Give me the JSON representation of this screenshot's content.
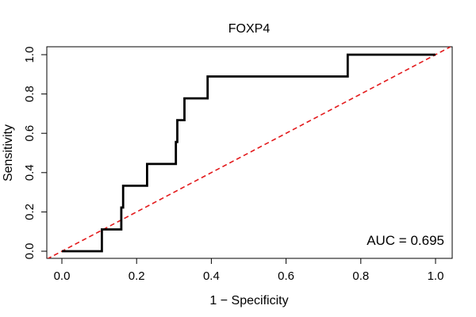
{
  "chart_data": {
    "type": "line",
    "title": "FOXP4",
    "xlabel": "1 − Specificity",
    "ylabel": "Sensitivity",
    "xlim": [
      0,
      1
    ],
    "ylim": [
      0,
      1
    ],
    "xticks": [
      0.0,
      0.2,
      0.4,
      0.6,
      0.8,
      1.0
    ],
    "xtick_labels": [
      "0.0",
      "0.2",
      "0.4",
      "0.6",
      "0.8",
      "1.0"
    ],
    "yticks": [
      0.0,
      0.2,
      0.4,
      0.6,
      0.8,
      1.0
    ],
    "ytick_labels": [
      "0.0",
      "0.2",
      "0.4",
      "0.6",
      "0.8",
      "1.0"
    ],
    "grid": false,
    "annotation": "AUC = 0.695",
    "series": [
      {
        "name": "ROC",
        "color": "#000000",
        "style": "solid",
        "x": [
          0.0,
          0.107,
          0.107,
          0.159,
          0.159,
          0.164,
          0.164,
          0.228,
          0.228,
          0.305,
          0.305,
          0.309,
          0.309,
          0.328,
          0.328,
          0.39,
          0.39,
          0.765,
          0.765,
          1.0
        ],
        "y": [
          0.0,
          0.0,
          0.111,
          0.111,
          0.222,
          0.222,
          0.333,
          0.333,
          0.444,
          0.444,
          0.556,
          0.556,
          0.667,
          0.667,
          0.778,
          0.778,
          0.889,
          0.889,
          1.0,
          1.0
        ]
      },
      {
        "name": "Reference",
        "color": "#e31a1c",
        "style": "dashed",
        "x": [
          -0.04,
          1.04
        ],
        "y": [
          -0.04,
          1.04
        ]
      }
    ]
  }
}
